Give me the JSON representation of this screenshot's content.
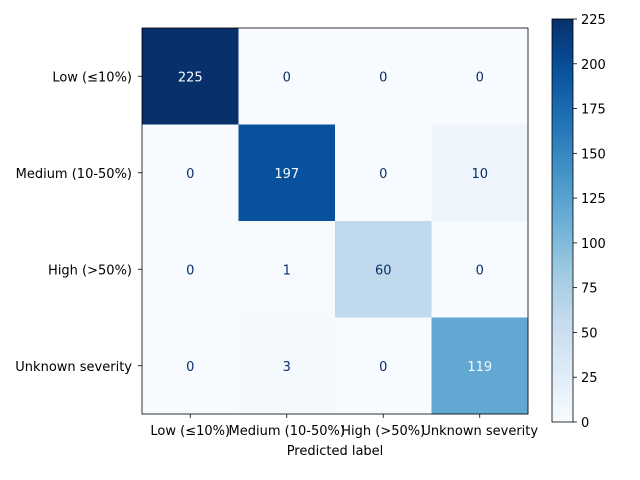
{
  "chart_data": {
    "type": "heatmap",
    "title": "",
    "xlabel": "Predicted label",
    "ylabel": "",
    "row_labels": [
      "Low (≤10%)",
      "Medium (10-50%)",
      "High (>50%)",
      "Unknown severity"
    ],
    "col_labels": [
      "Low (≤10%)",
      "Medium (10-50%)",
      "High (>50%)",
      "Unknown severity"
    ],
    "matrix": [
      [
        225,
        0,
        0,
        0
      ],
      [
        0,
        197,
        0,
        10
      ],
      [
        0,
        1,
        60,
        0
      ],
      [
        0,
        3,
        0,
        119
      ]
    ],
    "colorbar": {
      "min": 0,
      "max": 225,
      "ticks": [
        0,
        25,
        50,
        75,
        100,
        125,
        150,
        175,
        200,
        225
      ]
    },
    "colormap": "Blues",
    "colors": {
      "low": "#f7fbff",
      "high": "#08306b",
      "text_light": "#f7fbff",
      "text_dark": "#08306b"
    }
  }
}
